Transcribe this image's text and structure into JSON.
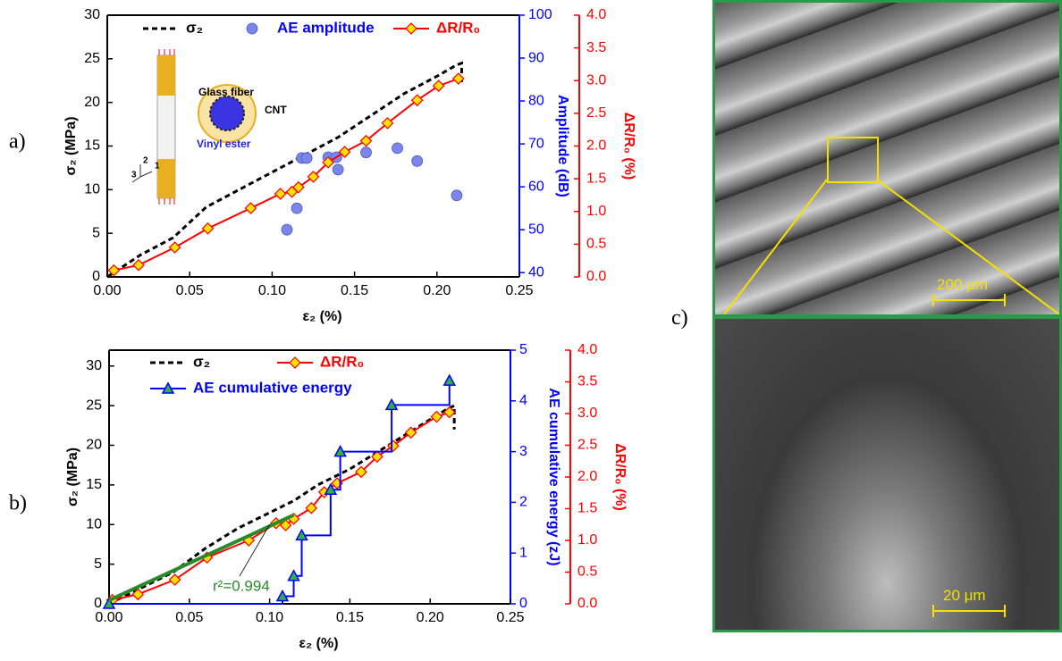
{
  "chart_data": [
    {
      "type": "line",
      "xlabel": "ε₂ (%)",
      "ylabel": "σ₂ (MPa)",
      "y2label": "Amplitude (dB)",
      "y3label": "ΔR/R₀ (%)",
      "xlim": [
        0,
        0.25
      ],
      "xticks": [
        {
          "value": 0,
          "label": "0.00"
        },
        0.05,
        {
          "value": 0.1,
          "label": "0.10"
        },
        0.15,
        {
          "value": 0.2,
          "label": "0.20"
        },
        0.25
      ],
      "ylim": [
        0,
        30
      ],
      "yticks": [
        0,
        5,
        10,
        15,
        20,
        25,
        30
      ],
      "y2lim": [
        39,
        100
      ],
      "y2ticks": [
        40,
        50,
        60,
        70,
        80,
        90,
        100
      ],
      "y2color": "#0000ff",
      "y3lim": [
        0,
        4
      ],
      "y3ticks": [
        {
          "value": 0,
          "label": "0.0"
        },
        0.5,
        {
          "value": 1,
          "label": "1.0"
        },
        1.5,
        {
          "value": 2,
          "label": "2.0"
        },
        2.5,
        {
          "value": 3,
          "label": "3.0"
        },
        3.5,
        {
          "value": 4,
          "label": "4.0"
        }
      ],
      "y3color": "#ff0000",
      "series": [
        {
          "name": "σ₂",
          "color": "#000000",
          "line_style": "dashed",
          "axis": "y",
          "x": [
            0,
            0.02,
            0.04,
            0.06,
            0.08,
            0.1,
            0.12,
            0.14,
            0.16,
            0.18,
            0.2,
            0.212,
            0.215,
            0.215
          ],
          "values": [
            0,
            2.5,
            4.5,
            8,
            10,
            12,
            14,
            16,
            18.5,
            21,
            23,
            24.3,
            24.5,
            22
          ]
        },
        {
          "name": "AE amplitude",
          "color": "#7b86e8",
          "type": "scatter",
          "marker": "circle",
          "axis": "y2",
          "x": [
            0.109,
            0.115,
            0.118,
            0.121,
            0.134,
            0.139,
            0.14,
            0.157,
            0.176,
            0.188,
            0.212
          ],
          "values": [
            50,
            55,
            66.7,
            66.7,
            66.9,
            66.9,
            64,
            68,
            69,
            66,
            58
          ]
        },
        {
          "name": "ΔR/R₀",
          "color": "#ff0000",
          "line_style": "solid",
          "marker": "diamond",
          "axis": "y3",
          "x": [
            0.004,
            0.019,
            0.041,
            0.061,
            0.087,
            0.105,
            0.112,
            0.116,
            0.125,
            0.134,
            0.144,
            0.157,
            0.17,
            0.188,
            0.201,
            0.213
          ],
          "values": [
            0.1,
            0.18,
            0.45,
            0.74,
            1.05,
            1.27,
            1.3,
            1.37,
            1.53,
            1.75,
            1.91,
            2.08,
            2.35,
            2.7,
            2.92,
            3.03
          ]
        }
      ],
      "inset_labels": [
        "Glass fiber",
        "CNT",
        "Vinyl ester",
        "1",
        "2",
        "3"
      ]
    },
    {
      "type": "line",
      "xlabel": "ε₂ (%)",
      "ylabel": "σ₂ (MPa)",
      "y2label": "AE cumulative energy (zJ)",
      "y3label": "ΔR/R₀ (%)",
      "xlim": [
        0,
        0.25
      ],
      "xticks": [
        {
          "value": 0,
          "label": "0.00"
        },
        0.05,
        {
          "value": 0.1,
          "label": "0.10"
        },
        0.15,
        {
          "value": 0.2,
          "label": "0.20"
        },
        0.25
      ],
      "ylim": [
        0,
        32
      ],
      "yticks": [
        0,
        5,
        10,
        15,
        20,
        25,
        30
      ],
      "y2lim": [
        0,
        5
      ],
      "y2ticks": [
        0,
        1,
        2,
        3,
        4,
        5
      ],
      "y2color": "#0000ff",
      "y3lim": [
        0,
        4
      ],
      "y3ticks": [
        {
          "value": 0,
          "label": "0.0"
        },
        0.5,
        {
          "value": 1,
          "label": "1.0"
        },
        1.5,
        {
          "value": 2,
          "label": "2.0"
        },
        2.5,
        {
          "value": 3,
          "label": "3.0"
        },
        3.5,
        {
          "value": 4,
          "label": "4.0"
        }
      ],
      "y3color": "#ff0000",
      "series": [
        {
          "name": "σ₂",
          "color": "#000000",
          "line_style": "dashed",
          "axis": "y",
          "x": [
            0,
            0.02,
            0.04,
            0.06,
            0.08,
            0.1,
            0.115,
            0.13,
            0.15,
            0.17,
            0.19,
            0.21,
            0.215,
            0.215
          ],
          "values": [
            0,
            2,
            4,
            7,
            9.5,
            11.5,
            13,
            15,
            17,
            19.5,
            22,
            24.5,
            25,
            22
          ]
        },
        {
          "name": "ΔR/R₀",
          "color": "#ff0000",
          "line_style": "solid",
          "marker": "diamond",
          "axis": "y3",
          "x": [
            0.002,
            0.018,
            0.041,
            0.061,
            0.087,
            0.104,
            0.11,
            0.115,
            0.126,
            0.134,
            0.142,
            0.157,
            0.167,
            0.177,
            0.188,
            0.204,
            0.212
          ],
          "values": [
            0.06,
            0.15,
            0.38,
            0.73,
            1.0,
            1.27,
            1.24,
            1.34,
            1.51,
            1.76,
            1.9,
            2.08,
            2.32,
            2.49,
            2.7,
            2.95,
            3.02
          ]
        },
        {
          "name": "AE cumulative energy",
          "color": "#0000ff",
          "line_style": "step",
          "marker": "triangle",
          "marker_color": "#2fb04a",
          "axis": "y2",
          "x": [
            0,
            0.108,
            0.115,
            0.12,
            0.138,
            0.144,
            0.176,
            0.212
          ],
          "values": [
            0,
            0.15,
            0.55,
            1.35,
            2.25,
            3.0,
            3.92,
            4.4
          ]
        },
        {
          "color": "#2a8a2a",
          "line_style": "thick",
          "axis": "y",
          "x": [
            0,
            0.115
          ],
          "values": [
            0.45,
            11.2
          ]
        }
      ],
      "annotations": [
        "r²=0.994"
      ]
    }
  ],
  "panel_labels": [
    "a)",
    "b)",
    "c)"
  ],
  "images": [
    {
      "scale_bar": "200 μm"
    },
    {
      "scale_bar": "20 μm"
    }
  ]
}
